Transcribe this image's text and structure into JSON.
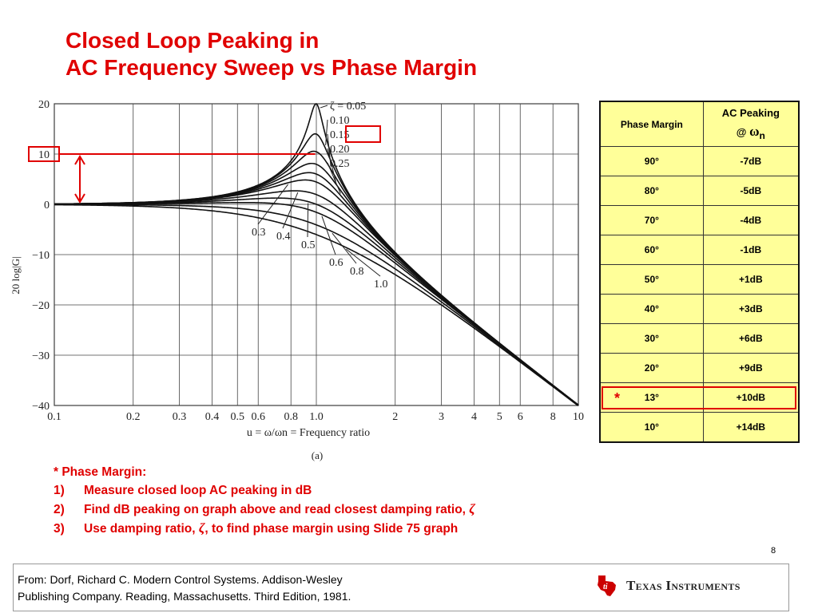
{
  "slide": {
    "title_line1": "Closed Loop Peaking in",
    "title_line2": "AC Frequency Sweep vs Phase Margin",
    "page_number": "8",
    "accent_color": "#e00000"
  },
  "chart_data": {
    "type": "line",
    "xscale": "log",
    "xlim": [
      0.1,
      10
    ],
    "ylim": [
      -40,
      20
    ],
    "grid": true,
    "ylabel": "20 log|G|",
    "xlabel": "u = ω/ωn = Frequency ratio",
    "caption": "(a)",
    "x_ticks": [
      0.1,
      0.2,
      0.3,
      0.4,
      0.5,
      0.6,
      0.8,
      1.0,
      2,
      3,
      4,
      5,
      6,
      8,
      10
    ],
    "x_tick_labels": [
      "0.1",
      "0.2",
      "0.3",
      "0.4",
      "0.5",
      "0.6",
      "0.8",
      "1.0",
      "2",
      "3",
      "4",
      "5",
      "6",
      "8",
      "10"
    ],
    "y_ticks": [
      20,
      10,
      0,
      -10,
      -20,
      -30,
      -40
    ],
    "y_tick_labels": [
      "20",
      "10",
      "0",
      "−10",
      "−20",
      "−30",
      "−40"
    ],
    "series": [
      {
        "name": "ζ = 0.05",
        "zeta": 0.05
      },
      {
        "name": "0.10",
        "zeta": 0.1
      },
      {
        "name": "0.15",
        "zeta": 0.15
      },
      {
        "name": "0.20",
        "zeta": 0.2
      },
      {
        "name": "0.25",
        "zeta": 0.25
      },
      {
        "name": "0.3",
        "zeta": 0.3
      },
      {
        "name": "0.4",
        "zeta": 0.4
      },
      {
        "name": "0.5",
        "zeta": 0.5
      },
      {
        "name": "0.6",
        "zeta": 0.6
      },
      {
        "name": "0.8",
        "zeta": 0.8
      },
      {
        "name": "1.0",
        "zeta": 1.0
      }
    ],
    "highlight": {
      "zeta_label": "0.15",
      "peak_db": 10
    }
  },
  "table": {
    "header_col1": "Phase Margin",
    "header_col2_line1": "AC Peaking",
    "header_col2_at": "@",
    "header_col2_omega": "ω",
    "header_col2_sub": "n",
    "rows": [
      {
        "pm": "90°",
        "peak": "-7dB"
      },
      {
        "pm": "80°",
        "peak": "-5dB"
      },
      {
        "pm": "70°",
        "peak": "-4dB"
      },
      {
        "pm": "60°",
        "peak": "-1dB"
      },
      {
        "pm": "50°",
        "peak": "+1dB"
      },
      {
        "pm": "40°",
        "peak": "+3dB"
      },
      {
        "pm": "30°",
        "peak": "+6dB"
      },
      {
        "pm": "20°",
        "peak": "+9dB"
      },
      {
        "pm": "13°",
        "peak": "+10dB"
      },
      {
        "pm": "10°",
        "peak": "+14dB"
      }
    ],
    "highlight_marker": "*",
    "fill_color": "#ffff99"
  },
  "notes": {
    "heading": "* Phase Margin:",
    "items": [
      {
        "num": "1)",
        "text": "Measure closed loop AC peaking in dB"
      },
      {
        "num": "2)",
        "text": "Find dB peaking on graph above and read closest damping ratio, ",
        "symbol": "ζ"
      },
      {
        "num": "3)",
        "text": "Use damping ratio, ",
        "symbol": "ζ",
        "text_after": ", to find phase margin using Slide 75 graph"
      }
    ]
  },
  "footer": {
    "source_line1": "From: Dorf, Richard C.  Modern Control Systems. Addison-Wesley",
    "source_line2": "Publishing Company. Reading, Massachusetts. Third Edition, 1981.",
    "logo_text": "Texas Instruments",
    "logo_icon": "texas-state-icon"
  }
}
